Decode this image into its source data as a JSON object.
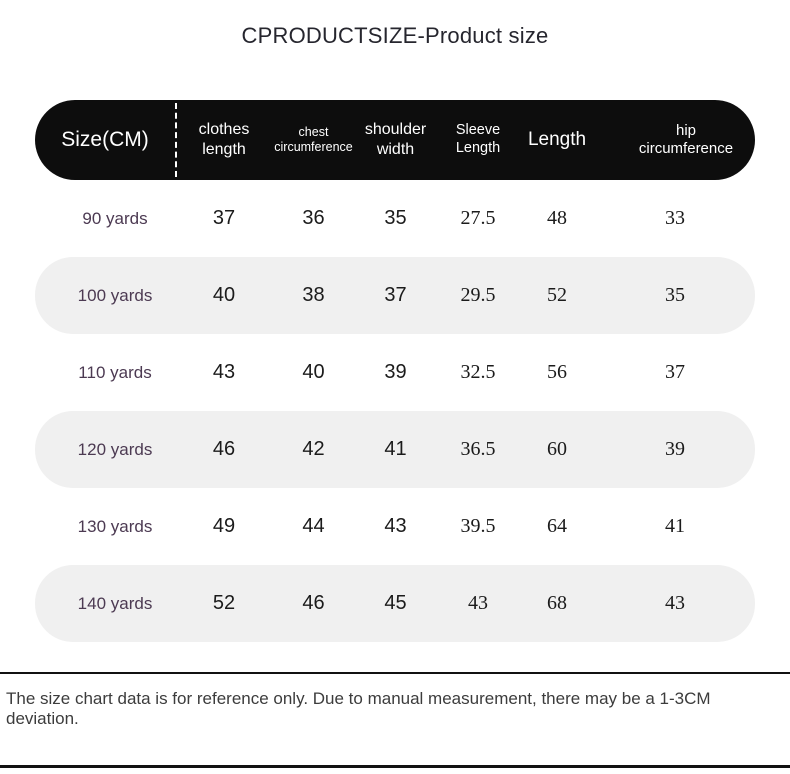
{
  "page": {
    "title": "CPRODUCTSIZE-Product size",
    "footer_note": "The size chart data is for reference only. Due to manual measurement, there may be a 1-3CM deviation."
  },
  "colors": {
    "header_bg": "#0d0d0d",
    "header_text": "#ffffff",
    "row_alt_bg": "#f0f0f0",
    "row_label_text": "#4c3a52",
    "value_text": "#1b1b1b",
    "footer_border": "#111111"
  },
  "table": {
    "columns": [
      {
        "label": "Size(CM)"
      },
      {
        "label": "clothes\nlength"
      },
      {
        "label": "chest\ncircumference"
      },
      {
        "label": "shoulder\nwidth"
      },
      {
        "label": "Sleeve\nLength"
      },
      {
        "label": "Length"
      },
      {
        "label": "hip\ncircumference"
      }
    ],
    "rows": [
      {
        "label": "90 yards",
        "values": [
          "37",
          "36",
          "35",
          "27.5",
          "48",
          "33"
        ]
      },
      {
        "label": "100 yards",
        "values": [
          "40",
          "38",
          "37",
          "29.5",
          "52",
          "35"
        ]
      },
      {
        "label": "110 yards",
        "values": [
          "43",
          "40",
          "39",
          "32.5",
          "56",
          "37"
        ]
      },
      {
        "label": "120 yards",
        "values": [
          "46",
          "42",
          "41",
          "36.5",
          "60",
          "39"
        ]
      },
      {
        "label": "130 yards",
        "values": [
          "49",
          "44",
          "43",
          "39.5",
          "64",
          "41"
        ]
      },
      {
        "label": "140 yards",
        "values": [
          "52",
          "46",
          "45",
          "43",
          "68",
          "43"
        ]
      }
    ]
  }
}
